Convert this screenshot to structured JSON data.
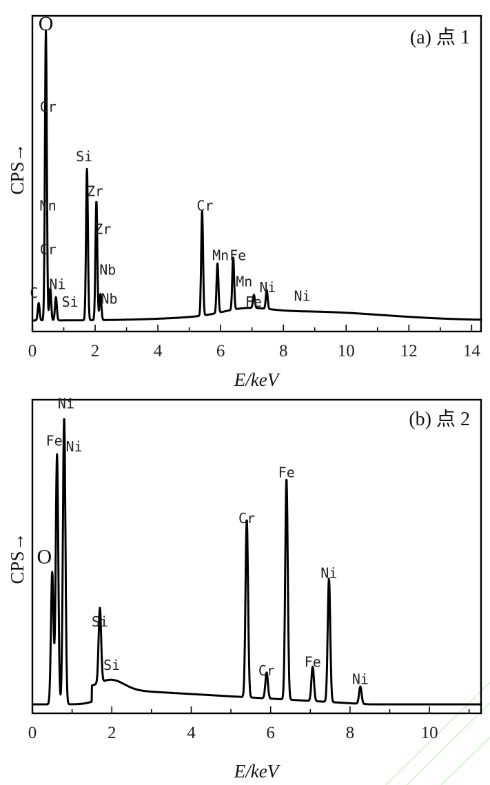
{
  "chart_data": [
    {
      "type": "line",
      "title": "(a) 点 1",
      "xlabel": "E/keV",
      "ylabel": "CPS→",
      "xlim": [
        0,
        14.3
      ],
      "xticks": [
        "0",
        "2",
        "4",
        "6",
        "8",
        "10",
        "12",
        "14"
      ],
      "grid": false,
      "peaks": [
        {
          "x": 0.2,
          "y": 0.06
        },
        {
          "x": 0.43,
          "y": 1.0
        },
        {
          "x": 0.57,
          "y": 0.11
        },
        {
          "x": 0.75,
          "y": 0.08
        },
        {
          "x": 1.74,
          "y": 0.52
        },
        {
          "x": 2.04,
          "y": 0.41
        },
        {
          "x": 2.17,
          "y": 0.09
        },
        {
          "x": 5.41,
          "y": 0.36
        },
        {
          "x": 5.9,
          "y": 0.17
        },
        {
          "x": 6.4,
          "y": 0.18
        },
        {
          "x": 7.06,
          "y": 0.045
        },
        {
          "x": 7.47,
          "y": 0.065
        }
      ],
      "labels": [
        {
          "text": "O",
          "x": 0.43,
          "y": 1.0
        },
        {
          "text": "Cr",
          "x": 0.5,
          "y": 0.72
        },
        {
          "text": "Mn",
          "x": 0.5,
          "y": 0.38
        },
        {
          "text": "Cr",
          "x": 0.5,
          "y": 0.23
        },
        {
          "text": "C",
          "x": 0.05,
          "y": 0.08
        },
        {
          "text": "Ni",
          "x": 0.8,
          "y": 0.11
        },
        {
          "text": "Si",
          "x": 1.2,
          "y": 0.05
        },
        {
          "text": "Si",
          "x": 1.65,
          "y": 0.55
        },
        {
          "text": "Zr",
          "x": 2.0,
          "y": 0.43
        },
        {
          "text": "Zr",
          "x": 2.25,
          "y": 0.3
        },
        {
          "text": "Nb",
          "x": 2.4,
          "y": 0.16
        },
        {
          "text": "Nb",
          "x": 2.45,
          "y": 0.06
        },
        {
          "text": "Cr",
          "x": 5.5,
          "y": 0.38
        },
        {
          "text": "Mn",
          "x": 6.0,
          "y": 0.21
        },
        {
          "text": "Fe",
          "x": 6.55,
          "y": 0.21
        },
        {
          "text": "Mn",
          "x": 6.75,
          "y": 0.12
        },
        {
          "text": "Fe",
          "x": 7.05,
          "y": 0.05
        },
        {
          "text": "Ni",
          "x": 7.5,
          "y": 0.1
        },
        {
          "text": "Ni",
          "x": 8.6,
          "y": 0.07
        }
      ]
    },
    {
      "type": "line",
      "title": "(b) 点 2",
      "xlabel": "E/keV",
      "ylabel": "CPS→",
      "xlim": [
        0,
        11.3
      ],
      "xticks": [
        "0",
        "2",
        "4",
        "6",
        "8",
        "10"
      ],
      "grid": false,
      "peaks": [
        {
          "x": 0.5,
          "y": 0.46
        },
        {
          "x": 0.62,
          "y": 0.87
        },
        {
          "x": 0.8,
          "y": 1.0
        },
        {
          "x": 1.7,
          "y": 0.26
        },
        {
          "x": 5.4,
          "y": 0.62
        },
        {
          "x": 5.9,
          "y": 0.09
        },
        {
          "x": 6.4,
          "y": 0.77
        },
        {
          "x": 7.06,
          "y": 0.12
        },
        {
          "x": 7.47,
          "y": 0.43
        },
        {
          "x": 8.26,
          "y": 0.06
        }
      ],
      "labels": [
        {
          "text": "Ni",
          "x": 0.85,
          "y": 1.04
        },
        {
          "text": "Fe",
          "x": 0.55,
          "y": 0.91
        },
        {
          "text": "Ni",
          "x": 1.05,
          "y": 0.89
        },
        {
          "text": "O",
          "x": 0.3,
          "y": 0.5
        },
        {
          "text": "Si",
          "x": 1.7,
          "y": 0.28
        },
        {
          "text": "Si",
          "x": 2.0,
          "y": 0.13
        },
        {
          "text": "Cr",
          "x": 5.4,
          "y": 0.64
        },
        {
          "text": "Cr",
          "x": 5.9,
          "y": 0.11
        },
        {
          "text": "Fe",
          "x": 6.4,
          "y": 0.8
        },
        {
          "text": "Fe",
          "x": 7.06,
          "y": 0.14
        },
        {
          "text": "Ni",
          "x": 7.47,
          "y": 0.45
        },
        {
          "text": "Ni",
          "x": 8.26,
          "y": 0.08
        }
      ]
    }
  ]
}
